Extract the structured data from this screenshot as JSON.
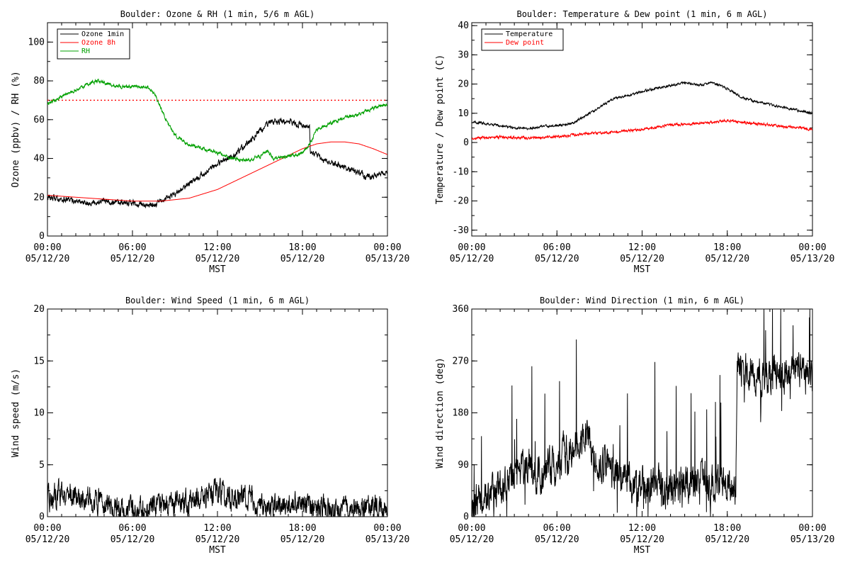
{
  "figure": {
    "background": "#ffffff",
    "axis_color": "#000000"
  },
  "chart_data": [
    {
      "type": "line",
      "title": "Boulder: Ozone & RH (1 min, 5/6 m AGL)",
      "xlabel": "MST",
      "ylabel": "Ozone (ppbv) / RH (%)",
      "xlim": [
        0,
        24
      ],
      "ylim": [
        0,
        110
      ],
      "x_ticks": [
        {
          "time": "00:00",
          "date": "05/12/20"
        },
        {
          "time": "06:00",
          "date": "05/12/20"
        },
        {
          "time": "12:00",
          "date": "05/12/20"
        },
        {
          "time": "18:00",
          "date": "05/12/20"
        },
        {
          "time": "00:00",
          "date": "05/13/20"
        }
      ],
      "y_ticks": [
        0,
        20,
        40,
        60,
        80,
        100
      ],
      "legend": "top-left",
      "threshold": {
        "value": 70,
        "color": "#ff0000",
        "style": "dotted"
      },
      "series": [
        {
          "name": "Ozone 1min",
          "color": "#000000",
          "noise": 1.2,
          "x": [
            0,
            1,
            2,
            3,
            4,
            5,
            6,
            7,
            7.7,
            8,
            9,
            10,
            11,
            12,
            13,
            14,
            15,
            15.5,
            16,
            17,
            18,
            18.5,
            18.55,
            19,
            20,
            21,
            22,
            22.5,
            23,
            24
          ],
          "values": [
            20,
            19,
            18,
            17,
            18,
            17,
            17,
            16,
            16,
            18,
            22,
            27,
            32,
            37,
            41,
            47,
            54,
            57,
            59,
            59,
            57,
            56,
            43,
            41,
            38,
            35,
            33,
            30,
            31,
            33
          ]
        },
        {
          "name": "Ozone 8h",
          "color": "#ff0000",
          "noise": 0,
          "x": [
            0,
            2,
            4,
            6,
            8,
            10,
            12,
            14,
            16,
            18,
            19,
            20,
            21,
            22,
            23,
            24
          ],
          "values": [
            21,
            20,
            19,
            18,
            18,
            19.5,
            24,
            31,
            38,
            45,
            47.5,
            48.5,
            48.5,
            47.5,
            45,
            42
          ]
        },
        {
          "name": "RH",
          "color": "#00a000",
          "noise": 0.7,
          "x": [
            0,
            1,
            2,
            3,
            3.5,
            4,
            5,
            6,
            7,
            7.5,
            8,
            8.5,
            9,
            10,
            11,
            12,
            13,
            14,
            15,
            15.5,
            16,
            17,
            18,
            18.5,
            19,
            20,
            21,
            22,
            23,
            24
          ],
          "values": [
            68,
            72,
            75,
            79,
            80,
            79,
            77,
            77,
            77,
            74,
            66,
            58,
            52,
            47,
            45,
            43,
            40,
            39,
            41,
            44,
            40,
            41,
            43,
            47,
            55,
            58,
            61,
            63,
            66,
            68
          ]
        }
      ]
    },
    {
      "type": "line",
      "title": "Boulder: Temperature & Dew point (1 min, 6 m AGL)",
      "xlabel": "MST",
      "ylabel": "Temperature / Dew point (C)",
      "xlim": [
        0,
        24
      ],
      "ylim": [
        -32,
        41
      ],
      "x_ticks": [
        {
          "time": "00:00",
          "date": "05/12/20"
        },
        {
          "time": "06:00",
          "date": "05/12/20"
        },
        {
          "time": "12:00",
          "date": "05/12/20"
        },
        {
          "time": "18:00",
          "date": "05/12/20"
        },
        {
          "time": "00:00",
          "date": "05/13/20"
        }
      ],
      "y_ticks": [
        -30,
        -20,
        -10,
        0,
        10,
        20,
        30,
        40
      ],
      "legend": "top-left",
      "series": [
        {
          "name": "Temperature",
          "color": "#000000",
          "noise": 0.3,
          "x": [
            0,
            1,
            2,
            3,
            4,
            5,
            6,
            7,
            8,
            9,
            10,
            11,
            12,
            13,
            14,
            15,
            16,
            17,
            18,
            19,
            20,
            21,
            22,
            23,
            24
          ],
          "values": [
            7,
            6.5,
            5.8,
            5,
            4.8,
            5.5,
            5.8,
            6.5,
            9,
            12,
            15,
            16,
            17.5,
            18.5,
            19.5,
            20.5,
            19.5,
            20.5,
            18.5,
            15.5,
            14,
            13,
            12,
            11,
            10
          ]
        },
        {
          "name": "Dew point",
          "color": "#ff0000",
          "noise": 0.35,
          "x": [
            0,
            2,
            4,
            6,
            8,
            10,
            12,
            14,
            16,
            17,
            18,
            20,
            22,
            24
          ],
          "values": [
            1.5,
            1.8,
            1.5,
            2,
            3,
            3.5,
            4.5,
            6,
            6.5,
            7,
            7.5,
            6.5,
            5.5,
            4.5
          ]
        }
      ]
    },
    {
      "type": "line",
      "title": "Boulder: Wind Speed (1 min, 6 m AGL)",
      "xlabel": "MST",
      "ylabel": "Wind speed (m/s)",
      "xlim": [
        0,
        24
      ],
      "ylim": [
        0,
        20
      ],
      "x_ticks": [
        {
          "time": "00:00",
          "date": "05/12/20"
        },
        {
          "time": "06:00",
          "date": "05/12/20"
        },
        {
          "time": "12:00",
          "date": "05/12/20"
        },
        {
          "time": "18:00",
          "date": "05/12/20"
        },
        {
          "time": "00:00",
          "date": "05/13/20"
        }
      ],
      "y_ticks": [
        0,
        5,
        10,
        15,
        20
      ],
      "series": [
        {
          "color": "#000000",
          "noise": 0.9,
          "floor": 0,
          "x": [
            0,
            1,
            2,
            3,
            4,
            4.5,
            5,
            6,
            7,
            8,
            9,
            10,
            11,
            12,
            13,
            14,
            15,
            16,
            17,
            18,
            19,
            20,
            21,
            22,
            23,
            24
          ],
          "values": [
            1.5,
            2.5,
            2,
            1.5,
            1.5,
            1,
            0.4,
            0.4,
            0.5,
            1,
            1.2,
            1.5,
            2,
            2.5,
            2,
            1.8,
            1.2,
            1,
            1,
            1.2,
            1,
            0.8,
            0.8,
            0.8,
            0.7,
            0.5
          ]
        }
      ]
    },
    {
      "type": "line",
      "title": "Boulder: Wind Direction (1 min, 6 m AGL)",
      "xlabel": "MST",
      "ylabel": "Wind direction (deg)",
      "xlim": [
        0,
        24
      ],
      "ylim": [
        0,
        360
      ],
      "x_ticks": [
        {
          "time": "00:00",
          "date": "05/12/20"
        },
        {
          "time": "06:00",
          "date": "05/12/20"
        },
        {
          "time": "12:00",
          "date": "05/12/20"
        },
        {
          "time": "18:00",
          "date": "05/12/20"
        },
        {
          "time": "00:00",
          "date": "05/13/20"
        }
      ],
      "y_ticks": [
        0,
        90,
        180,
        270,
        360
      ],
      "series": [
        {
          "color": "#000000",
          "noise": 25,
          "floor": 0,
          "ceil": 360,
          "spike_prob": 0.04,
          "x": [
            0,
            1,
            2,
            3,
            4,
            5,
            6,
            7,
            8,
            9,
            10,
            11,
            12,
            13,
            14,
            15,
            16,
            17,
            18,
            18.6,
            18.7,
            19,
            20,
            21,
            22,
            23,
            24
          ],
          "values": [
            25,
            30,
            50,
            70,
            90,
            70,
            90,
            120,
            140,
            100,
            80,
            60,
            50,
            60,
            50,
            55,
            60,
            55,
            50,
            40,
            260,
            255,
            240,
            245,
            250,
            250,
            245
          ]
        }
      ]
    }
  ]
}
